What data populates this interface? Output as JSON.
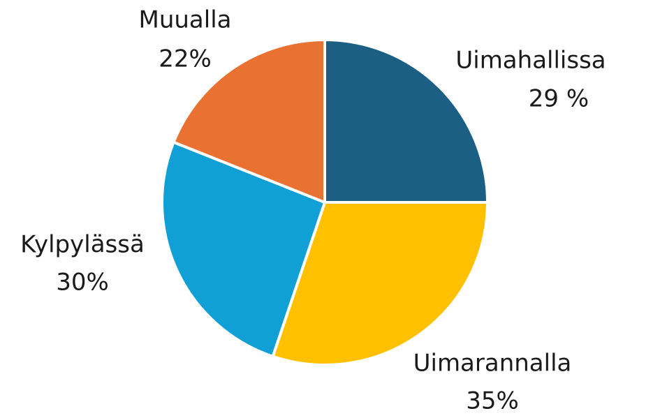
{
  "chart_data": {
    "type": "pie",
    "categories": [
      "Uimahallissa",
      "Uimarannalla",
      "Kylpylässä",
      "Muualla"
    ],
    "values": [
      29,
      35,
      30,
      22
    ],
    "value_labels": [
      "29 %",
      "35%",
      "30%",
      "22%"
    ],
    "colors": [
      "#1b5f85",
      "#ffc000",
      "#10a0d6",
      "#e97132"
    ]
  }
}
